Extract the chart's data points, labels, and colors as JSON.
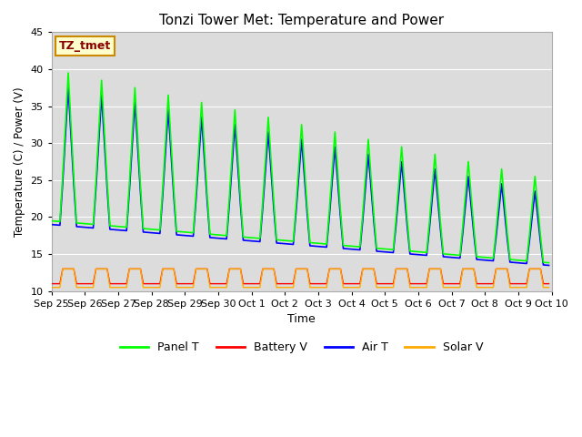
{
  "title": "Tonzi Tower Met: Temperature and Power",
  "xlabel": "Time",
  "ylabel": "Temperature (C) / Power (V)",
  "ylim": [
    10,
    45
  ],
  "yticks": [
    10,
    15,
    20,
    25,
    30,
    35,
    40,
    45
  ],
  "bg_color": "#dcdcdc",
  "timezone_label": "TZ_tmet",
  "legend_entries": [
    "Panel T",
    "Battery V",
    "Air T",
    "Solar V"
  ],
  "legend_colors": [
    "#00ff00",
    "#ff0000",
    "#0000ff",
    "#ffaa00"
  ],
  "x_tick_labels": [
    "Sep 25",
    "Sep 26",
    "Sep 27",
    "Sep 28",
    "Sep 29",
    "Sep 30",
    "Oct 1",
    "Oct 2",
    "Oct 3",
    "Oct 4",
    "Oct 5",
    "Oct 6",
    "Oct 7",
    "Oct 8",
    "Oct 9",
    "Oct 10"
  ],
  "line_colors": {
    "panel_t": "#00ff00",
    "battery_v": "#ff0000",
    "air_t": "#0000ff",
    "solar_v": "#ffaa00"
  }
}
